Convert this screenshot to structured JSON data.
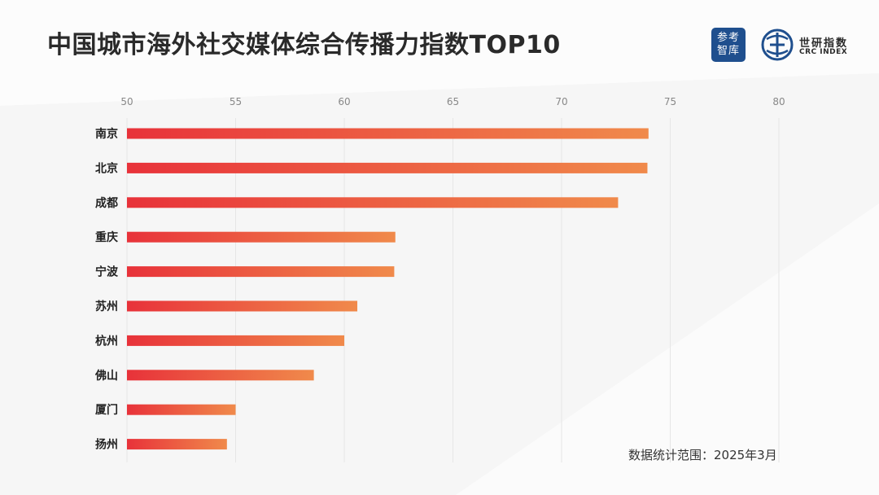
{
  "header": {
    "title": "中国城市海外社交媒体综合传播力指数TOP10"
  },
  "logos": {
    "left_logo_text": "参考智库",
    "right_logo_name": "世研指数",
    "right_logo_en": "CRC INDEX"
  },
  "footer": {
    "note": "数据统计范围：2025年3月"
  },
  "colors": {
    "bar_start": "#e8323a",
    "bar_end": "#f08a4b",
    "logo_blue": "#1f4f8e"
  },
  "chart_data": {
    "type": "bar",
    "orientation": "horizontal",
    "categories": [
      "南京",
      "北京",
      "成都",
      "重庆",
      "宁波",
      "苏州",
      "杭州",
      "佛山",
      "厦门",
      "扬州"
    ],
    "values": [
      74.0,
      73.95,
      72.6,
      62.35,
      62.3,
      60.6,
      60.0,
      58.6,
      55.0,
      54.6
    ],
    "xlim": [
      50,
      80
    ],
    "xticks": [
      "50",
      "55",
      "60",
      "65",
      "70",
      "75",
      "80"
    ],
    "xtick_values": [
      50,
      55,
      60,
      65,
      70,
      75,
      80
    ],
    "grid": true,
    "axis_position": "top"
  }
}
